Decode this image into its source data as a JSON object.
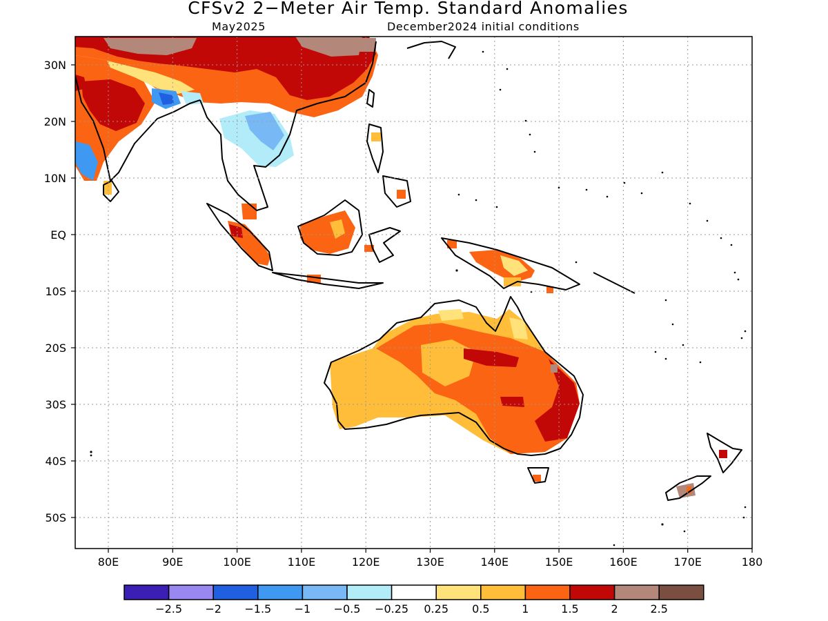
{
  "title": "CFSv2 2−Meter Air Temp. Standard Anomalies",
  "subtitle_valid": "May2025",
  "subtitle_init": "December2024 initial conditions",
  "lat_labels": [
    "30N",
    "20N",
    "10N",
    "EQ",
    "10S",
    "20S",
    "30S",
    "40S",
    "50S"
  ],
  "lon_labels": [
    "80E",
    "90E",
    "100E",
    "110E",
    "120E",
    "130E",
    "140E",
    "150E",
    "160E",
    "170E",
    "180"
  ],
  "colorbar": {
    "colors": [
      "#3b1fb4",
      "#9a88f2",
      "#1f5fe0",
      "#3f98f1",
      "#78b9f5",
      "#b2ecf8",
      "#ffffff",
      "#ffe27a",
      "#ffbd3a",
      "#fb6412",
      "#c20707",
      "#b3887b",
      "#7a4f42"
    ],
    "labels": [
      "−2.5",
      "−2",
      "−1.5",
      "−1",
      "−0.5",
      "−0.25",
      "0.25",
      "0.5",
      "1",
      "1.5",
      "2",
      "2.5"
    ]
  },
  "palette": {
    "yellow": "#ffe27a",
    "light_orange": "#ffbd3a",
    "orange": "#fb6412",
    "red": "#c20707",
    "brown": "#b3887b",
    "light_blue": "#b2ecf8",
    "mid_blue": "#78b9f5",
    "blue": "#3f98f1",
    "deep_blue": "#1f5fe0"
  }
}
